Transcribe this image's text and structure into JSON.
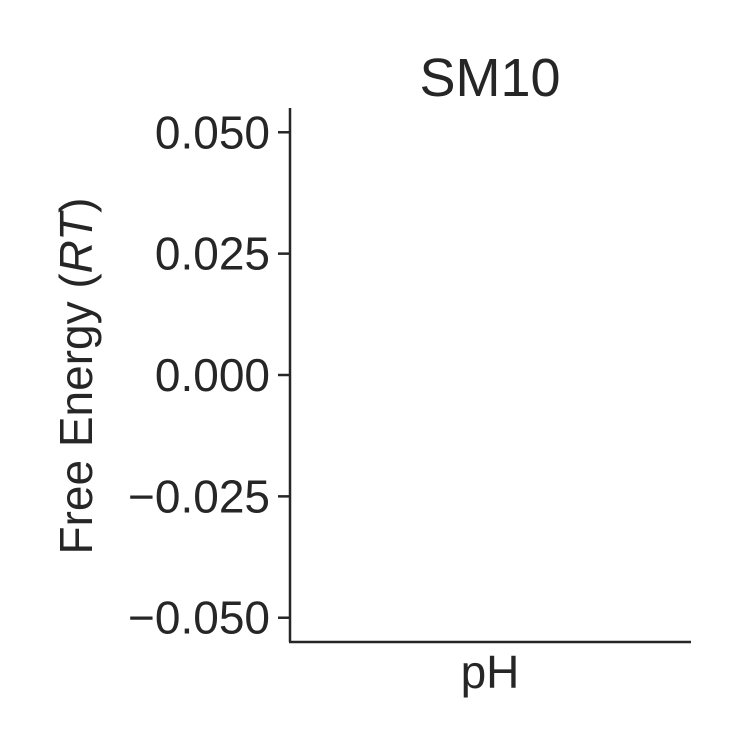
{
  "chart_data": {
    "type": "line",
    "title": "SM10",
    "xlabel": "pH",
    "ylabel": "Free Energy (RT)",
    "ylabel_parts": {
      "prefix": "Free Energy (",
      "italic": "RT",
      "suffix": ")"
    },
    "ylim": [
      -0.055,
      0.055
    ],
    "yticks": [
      0.05,
      0.025,
      0.0,
      -0.025,
      -0.05
    ],
    "ytick_labels": [
      "0.050",
      "0.025",
      "0.000",
      "−0.025",
      "−0.050"
    ],
    "series": [],
    "grid": false,
    "legend": "none"
  }
}
